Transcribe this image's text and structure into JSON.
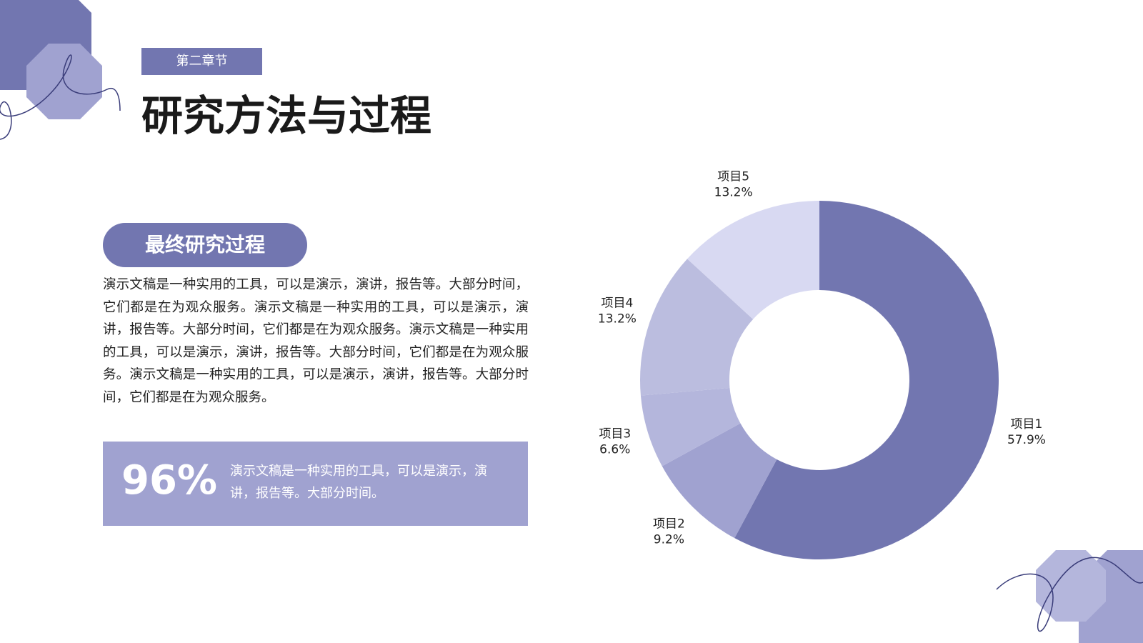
{
  "header": {
    "section_tag": "第二章节",
    "title": "研究方法与过程"
  },
  "content": {
    "subtitle": "最终研究过程",
    "paragraph": "演示文稿是一种实用的工具，可以是演示，演讲，报告等。大部分时间，它们都是在为观众服务。演示文稿是一种实用的工具，可以是演示，演讲，报告等。大部分时间，它们都是在为观众服务。演示文稿是一种实用的工具，可以是演示，演讲，报告等。大部分时间，它们都是在为观众服务。演示文稿是一种实用的工具，可以是演示，演讲，报告等。大部分时间，它们都是在为观众服务。",
    "stat": "96%",
    "stat_text": "演示文稿是一种实用的工具，可以是演示，演讲，报告等。大部分时间。"
  },
  "chart_data": {
    "type": "donut",
    "categories": [
      "项目1",
      "项目2",
      "项目3",
      "项目4",
      "项目5"
    ],
    "values": [
      57.9,
      9.2,
      6.6,
      13.2,
      13.2
    ],
    "value_labels": [
      "57.9%",
      "9.2%",
      "6.6%",
      "13.2%",
      "13.2%"
    ],
    "colors": [
      "#7276b0",
      "#a0a2d0",
      "#b4b6dc",
      "#bbbddf",
      "#d8d9f2"
    ]
  }
}
